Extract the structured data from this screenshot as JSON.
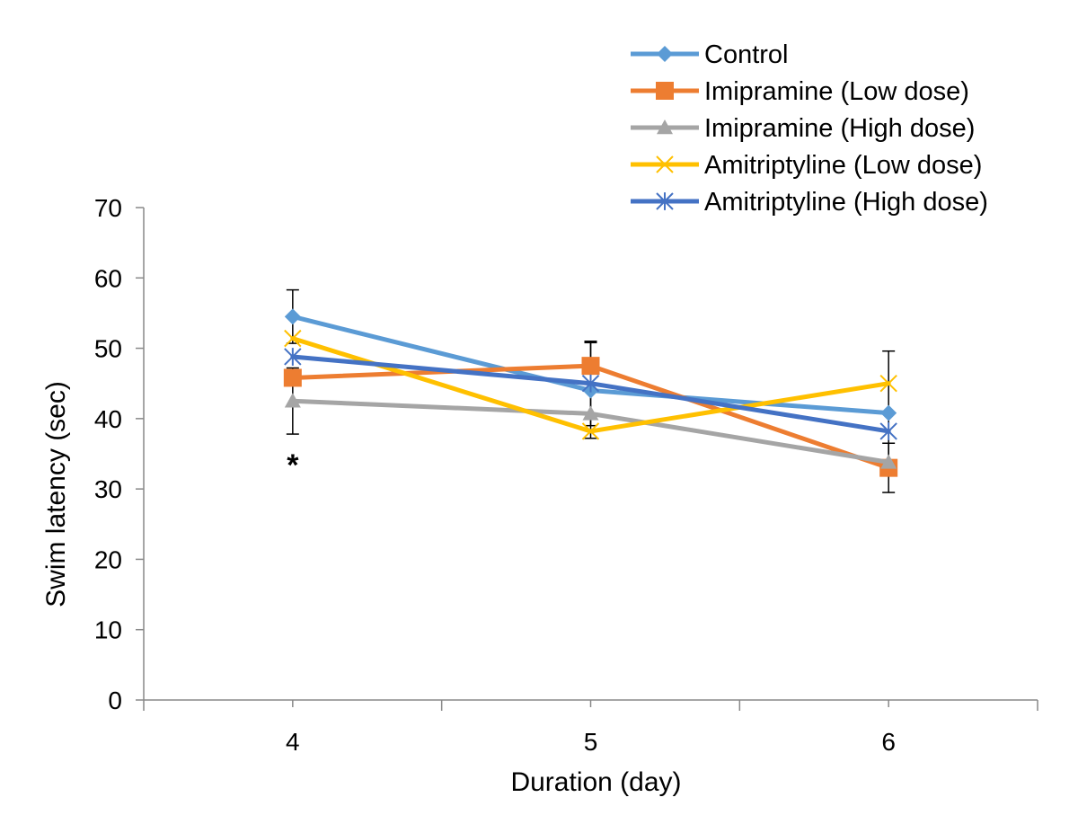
{
  "chart_data": {
    "type": "line",
    "title": "",
    "xlabel": "Duration (day)",
    "ylabel": "Swim latency (sec)",
    "categories": [
      "4",
      "5",
      "6"
    ],
    "ylim": [
      0,
      70
    ],
    "yticks": [
      0,
      10,
      20,
      30,
      40,
      50,
      60,
      70
    ],
    "grid": false,
    "legend_position": "top-right",
    "series": [
      {
        "name": "Control",
        "values": [
          54.5,
          44.0,
          40.8
        ],
        "color": "#5B9BD5",
        "marker": "diamond",
        "error": [
          3.8,
          6.8,
          8.8
        ]
      },
      {
        "name": "Imipramine (Low dose)",
        "values": [
          45.8,
          47.5,
          33.0
        ],
        "color": "#ED7D31",
        "marker": "square",
        "error": [
          0,
          0,
          3.5
        ]
      },
      {
        "name": "Imipramine (High dose)",
        "values": [
          42.5,
          40.7,
          33.8
        ],
        "color": "#A5A5A5",
        "marker": "triangle",
        "error": [
          4.7,
          0,
          0
        ]
      },
      {
        "name": "Amitriptyline (Low dose)",
        "values": [
          51.4,
          38.2,
          45.0
        ],
        "color": "#FFC000",
        "marker": "x",
        "error": [
          0,
          0,
          0
        ]
      },
      {
        "name": "Amitriptyline (High dose)",
        "values": [
          48.8,
          45.0,
          38.2
        ],
        "color": "#4472C4",
        "marker": "star",
        "error": [
          0,
          6.0,
          0
        ]
      }
    ],
    "annotations": [
      {
        "text": "*",
        "x": "4",
        "y": 35
      }
    ]
  }
}
